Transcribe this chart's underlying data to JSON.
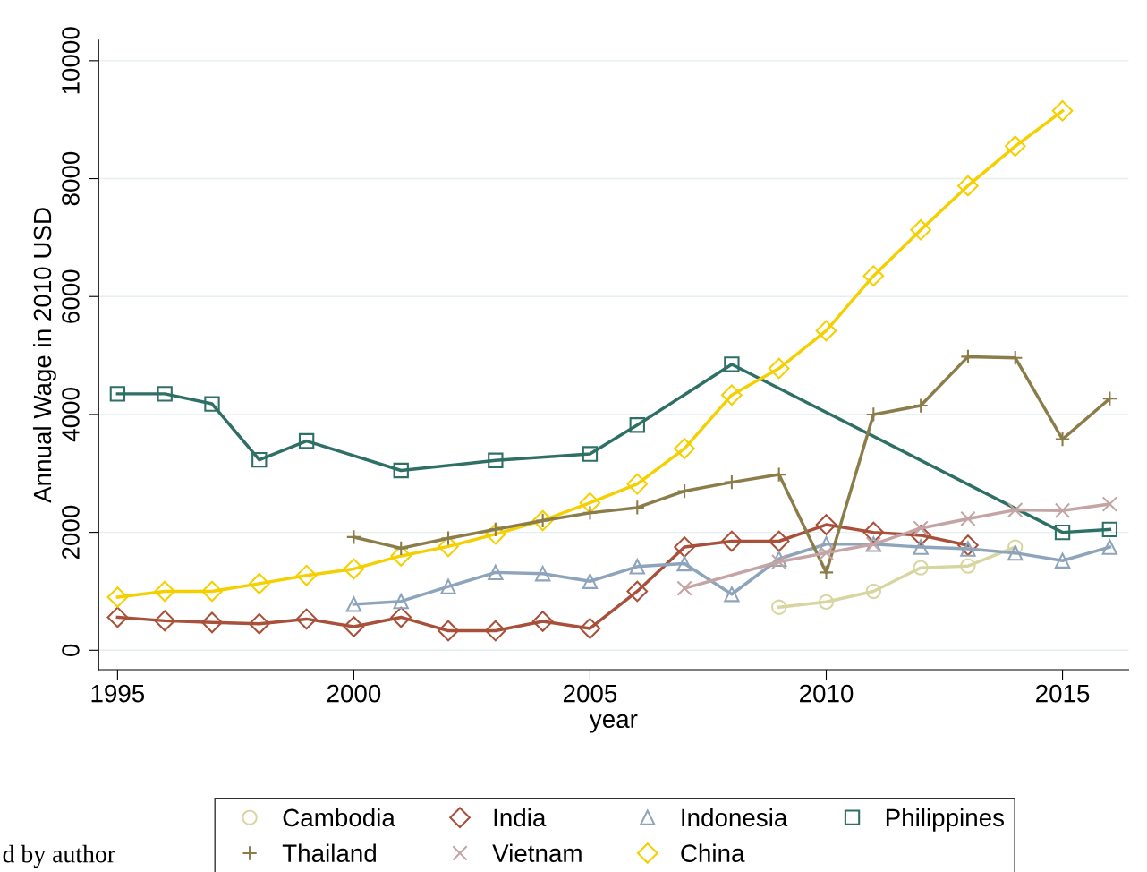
{
  "chart_data": {
    "type": "line",
    "xlabel": "year",
    "ylabel": "Annual Wage in 2010 USD",
    "xlim": [
      1994.6,
      2016.4
    ],
    "xticks": [
      1995,
      2000,
      2005,
      2010,
      2015
    ],
    "ylim": [
      -330,
      10350
    ],
    "yticks": [
      0,
      2000,
      4000,
      6000,
      8000,
      10000
    ],
    "grid": "y",
    "legend": "bottom",
    "annotations": [
      "d by author"
    ],
    "series": [
      {
        "name": "Cambodia",
        "color": "#d8d6a0",
        "marker": "circle",
        "x": [
          2009,
          2010,
          2011,
          2012,
          2013,
          2014
        ],
        "values": [
          730,
          820,
          1000,
          1400,
          1430,
          1750
        ]
      },
      {
        "name": "India",
        "color": "#a8503a",
        "marker": "diamond",
        "x": [
          1995,
          1996,
          1997,
          1998,
          1999,
          2000,
          2001,
          2002,
          2003,
          2004,
          2005,
          2006,
          2007,
          2008,
          2009,
          2010,
          2011,
          2012,
          2013
        ],
        "values": [
          560,
          500,
          470,
          450,
          530,
          400,
          560,
          330,
          330,
          490,
          370,
          1000,
          1750,
          1850,
          1850,
          2130,
          2000,
          1950,
          1780
        ]
      },
      {
        "name": "Indonesia",
        "color": "#8ea4bb",
        "marker": "triangle",
        "x": [
          2000,
          2001,
          2002,
          2003,
          2004,
          2005,
          2006,
          2007,
          2008,
          2009,
          2010,
          2011,
          2012,
          2013,
          2014,
          2015,
          2016
        ],
        "values": [
          780,
          830,
          1080,
          1320,
          1300,
          1170,
          1420,
          1470,
          950,
          1550,
          1800,
          1800,
          1750,
          1720,
          1650,
          1520,
          1750
        ]
      },
      {
        "name": "Philippines",
        "color": "#2e6f66",
        "marker": "square",
        "x": [
          1995,
          1996,
          1997,
          1998,
          1999,
          2001,
          2003,
          2005,
          2006,
          2008,
          2015,
          2016
        ],
        "values": [
          4350,
          4350,
          4180,
          3230,
          3550,
          3050,
          3220,
          3330,
          3820,
          4850,
          2000,
          2050
        ]
      },
      {
        "name": "Thailand",
        "color": "#8b7d4a",
        "marker": "plus",
        "x": [
          2000,
          2001,
          2002,
          2003,
          2004,
          2005,
          2006,
          2007,
          2008,
          2009,
          2010,
          2011,
          2012,
          2013,
          2014,
          2015,
          2016
        ],
        "values": [
          1920,
          1730,
          1900,
          2050,
          2200,
          2330,
          2420,
          2700,
          2850,
          2980,
          1320,
          4000,
          4150,
          4980,
          4960,
          3580,
          4270
        ]
      },
      {
        "name": "Vietnam",
        "color": "#c4a4a4",
        "marker": "cross",
        "x": [
          2007,
          2009,
          2010,
          2011,
          2012,
          2013,
          2014,
          2015,
          2016
        ],
        "values": [
          1050,
          1500,
          1650,
          1800,
          2070,
          2230,
          2380,
          2370,
          2480
        ]
      },
      {
        "name": "China",
        "color": "#f5d000",
        "marker": "diamond",
        "x": [
          1995,
          1996,
          1997,
          1998,
          1999,
          2000,
          2001,
          2002,
          2003,
          2004,
          2005,
          2006,
          2007,
          2008,
          2009,
          2010,
          2011,
          2012,
          2013,
          2014,
          2015
        ],
        "values": [
          900,
          1000,
          1000,
          1130,
          1270,
          1380,
          1600,
          1760,
          1970,
          2200,
          2500,
          2820,
          3420,
          4330,
          4780,
          5420,
          6350,
          7130,
          7880,
          8550,
          9150
        ]
      }
    ]
  }
}
